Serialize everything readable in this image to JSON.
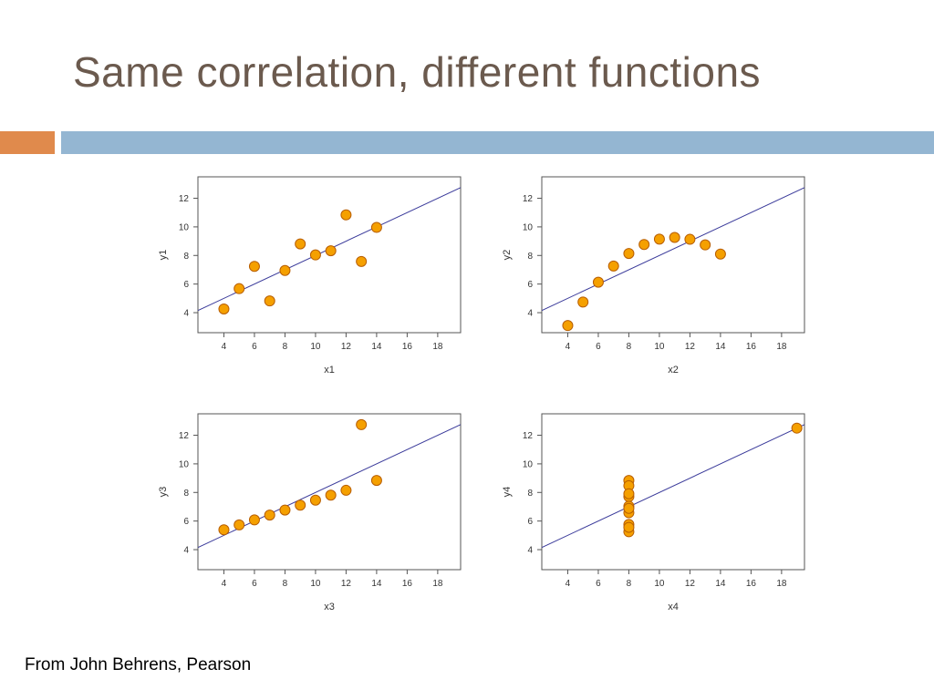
{
  "slide": {
    "title": "Same correlation, different functions",
    "source": "From John Behrens, Pearson"
  },
  "colors": {
    "title": "#6b5a4e",
    "bar_orange": "#e08a4c",
    "bar_blue": "#94b6d2",
    "point_fill": "#f5a000",
    "point_stroke": "#b85e00",
    "fit_line": "#3a3a9a"
  },
  "chart_data": [
    {
      "type": "scatter",
      "xlabel": "x1",
      "ylabel": "y1",
      "xlim": [
        2.3,
        19.5
      ],
      "ylim": [
        2.6,
        13.5
      ],
      "xticks": [
        4,
        6,
        8,
        10,
        12,
        14,
        16,
        18
      ],
      "yticks": [
        4,
        6,
        8,
        10,
        12
      ],
      "fit_line": {
        "intercept": 3.0,
        "slope": 0.5
      },
      "points": [
        [
          10,
          8.04
        ],
        [
          8,
          6.95
        ],
        [
          13,
          7.58
        ],
        [
          9,
          8.81
        ],
        [
          11,
          8.33
        ],
        [
          14,
          9.96
        ],
        [
          6,
          7.24
        ],
        [
          4,
          4.26
        ],
        [
          12,
          10.84
        ],
        [
          7,
          4.82
        ],
        [
          5,
          5.68
        ]
      ]
    },
    {
      "type": "scatter",
      "xlabel": "x2",
      "ylabel": "y2",
      "xlim": [
        2.3,
        19.5
      ],
      "ylim": [
        2.6,
        13.5
      ],
      "xticks": [
        4,
        6,
        8,
        10,
        12,
        14,
        16,
        18
      ],
      "yticks": [
        4,
        6,
        8,
        10,
        12
      ],
      "fit_line": {
        "intercept": 3.0,
        "slope": 0.5
      },
      "points": [
        [
          10,
          9.14
        ],
        [
          8,
          8.14
        ],
        [
          13,
          8.74
        ],
        [
          9,
          8.77
        ],
        [
          11,
          9.26
        ],
        [
          14,
          8.1
        ],
        [
          6,
          6.13
        ],
        [
          4,
          3.1
        ],
        [
          12,
          9.13
        ],
        [
          7,
          7.26
        ],
        [
          5,
          4.74
        ]
      ]
    },
    {
      "type": "scatter",
      "xlabel": "x3",
      "ylabel": "y3",
      "xlim": [
        2.3,
        19.5
      ],
      "ylim": [
        2.6,
        13.5
      ],
      "xticks": [
        4,
        6,
        8,
        10,
        12,
        14,
        16,
        18
      ],
      "yticks": [
        4,
        6,
        8,
        10,
        12
      ],
      "fit_line": {
        "intercept": 3.0,
        "slope": 0.5
      },
      "points": [
        [
          10,
          7.46
        ],
        [
          8,
          6.77
        ],
        [
          13,
          12.74
        ],
        [
          9,
          7.11
        ],
        [
          11,
          7.81
        ],
        [
          14,
          8.84
        ],
        [
          6,
          6.08
        ],
        [
          4,
          5.39
        ],
        [
          12,
          8.15
        ],
        [
          7,
          6.42
        ],
        [
          5,
          5.73
        ]
      ]
    },
    {
      "type": "scatter",
      "xlabel": "x4",
      "ylabel": "y4",
      "xlim": [
        2.3,
        19.5
      ],
      "ylim": [
        2.6,
        13.5
      ],
      "xticks": [
        4,
        6,
        8,
        10,
        12,
        14,
        16,
        18
      ],
      "yticks": [
        4,
        6,
        8,
        10,
        12
      ],
      "fit_line": {
        "intercept": 3.0,
        "slope": 0.5
      },
      "points": [
        [
          8,
          6.58
        ],
        [
          8,
          5.76
        ],
        [
          8,
          7.71
        ],
        [
          8,
          8.84
        ],
        [
          8,
          8.47
        ],
        [
          8,
          7.04
        ],
        [
          8,
          5.25
        ],
        [
          19,
          12.5
        ],
        [
          8,
          5.56
        ],
        [
          8,
          7.91
        ],
        [
          8,
          6.89
        ]
      ]
    }
  ]
}
